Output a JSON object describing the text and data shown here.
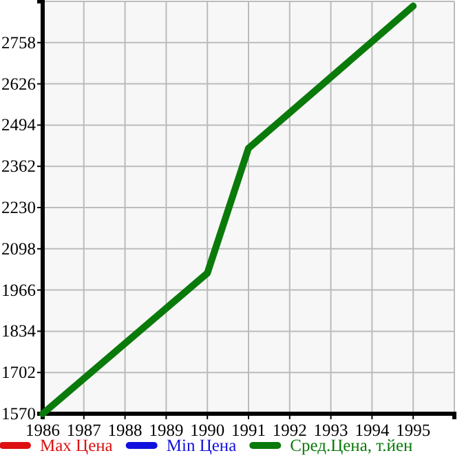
{
  "chart_data": {
    "type": "line",
    "x": [
      1986,
      1990,
      1991,
      1995
    ],
    "series": [
      {
        "name": "Max Цена",
        "color": "#dd1111",
        "values": [
          null,
          null,
          null,
          null
        ]
      },
      {
        "name": "Min Цена",
        "color": "#1111dd",
        "values": [
          null,
          null,
          null,
          null
        ]
      },
      {
        "name": "Сред.Цена, т.йен",
        "color": "#0a7a0a",
        "values": [
          1570,
          2020,
          2420,
          2875
        ]
      }
    ],
    "xlim": [
      1986,
      1996
    ],
    "xticks": [
      1986,
      1987,
      1988,
      1989,
      1990,
      1991,
      1992,
      1993,
      1994,
      1995,
      {
        "value": 1996,
        "label": null
      }
    ],
    "ylim": [
      1570,
      2890
    ],
    "yticks": [
      1570,
      1702,
      1834,
      1966,
      2098,
      2230,
      2362,
      2494,
      2626,
      2758,
      {
        "value": 2890,
        "label": null
      }
    ],
    "grid": true,
    "legend": "bottom",
    "marker": "none",
    "line_style": "solid"
  }
}
